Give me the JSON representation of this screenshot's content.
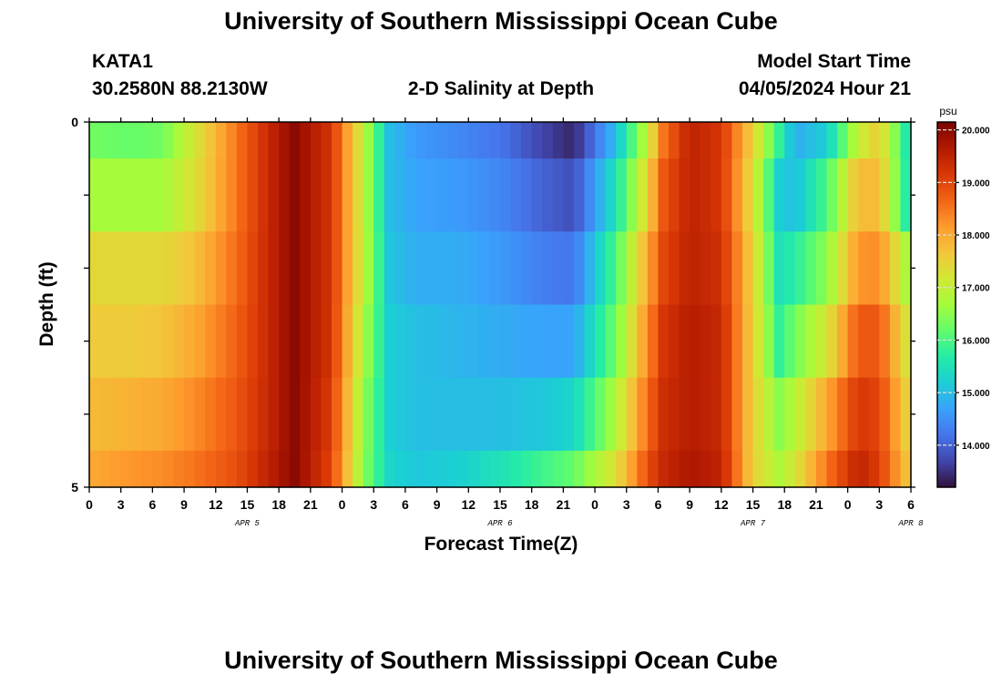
{
  "page": {
    "title": "University of Southern Mississippi Ocean Cube",
    "bottom_title": "University of Southern Mississippi Ocean Cube",
    "station_id": "KATA1",
    "coordinates": "30.2580N  88.2130W",
    "subtitle": "2-D Salinity at Depth",
    "model_start_label": "Model Start Time",
    "model_start_value": "04/05/2024 Hour 21"
  },
  "chart_data": {
    "type": "heatmap",
    "title": "2-D Salinity at Depth",
    "xlabel": "Forecast Time(Z)",
    "ylabel": "Depth (ft)",
    "ylim": [
      0,
      5
    ],
    "y_tick_labels": [
      "0",
      "5"
    ],
    "x_tick_labels": [
      "0",
      "3",
      "6",
      "9",
      "12",
      "15",
      "18",
      "21",
      "0",
      "3",
      "6",
      "9",
      "12",
      "15",
      "18",
      "21",
      "0",
      "3",
      "6",
      "9",
      "12",
      "15",
      "18",
      "21",
      "0",
      "3",
      "6"
    ],
    "day_labels": [
      {
        "label": "APR 5",
        "hour": 15
      },
      {
        "label": "APR 6",
        "hour": 39
      },
      {
        "label": "APR 7",
        "hour": 63
      },
      {
        "label": "APR 8",
        "hour": 78
      }
    ],
    "time_range_hours": [
      0,
      78
    ],
    "depth_bands_ft": [
      [
        0,
        0.5
      ],
      [
        0.5,
        1.5
      ],
      [
        1.5,
        2.5
      ],
      [
        2.5,
        3.5
      ],
      [
        3.5,
        4.5
      ],
      [
        4.5,
        5
      ]
    ],
    "colorbar": {
      "unit": "psu",
      "min": 13.2,
      "max": 20.15,
      "tick_values": [
        14.0,
        15.0,
        16.0,
        17.0,
        18.0,
        19.0,
        20.0
      ],
      "tick_labels": [
        "14.000",
        "15.000",
        "16.000",
        "17.000",
        "18.000",
        "19.000",
        "20.000"
      ],
      "colors": [
        "#30123b",
        "#4145ab",
        "#4675ed",
        "#39a2fc",
        "#1bcfd4",
        "#24eca6",
        "#61fc6c",
        "#a4fc3b",
        "#d1e834",
        "#f3c63a",
        "#fe9b2d",
        "#f36315",
        "#d93806",
        "#b11901",
        "#7a0402"
      ]
    },
    "keyframe_hours": [
      0,
      4,
      7,
      10,
      14,
      17,
      19.5,
      23,
      26,
      28.5,
      31,
      35,
      39,
      43,
      46,
      50,
      53,
      54.5,
      57,
      60,
      63,
      65.5,
      67,
      70,
      73,
      75,
      78
    ],
    "band_series": [
      {
        "band": "0 ft",
        "values": [
          16.3,
          16.2,
          16.3,
          17.2,
          18.5,
          19.4,
          20.0,
          19.2,
          17.0,
          15.0,
          14.6,
          14.4,
          14.2,
          13.7,
          13.4,
          15.0,
          17.0,
          18.5,
          19.5,
          19.2,
          17.5,
          15.8,
          14.8,
          15.2,
          17.0,
          17.6,
          15.3
        ]
      },
      {
        "band": "1 ft",
        "values": [
          16.7,
          16.7,
          16.7,
          17.3,
          18.5,
          19.4,
          20.0,
          19.2,
          17.0,
          15.0,
          14.7,
          14.6,
          14.4,
          14.0,
          13.8,
          15.5,
          17.5,
          18.8,
          19.5,
          19.2,
          17.3,
          15.2,
          15.0,
          16.0,
          17.8,
          17.8,
          15.3
        ]
      },
      {
        "band": "2 ft",
        "values": [
          17.4,
          17.4,
          17.4,
          17.7,
          18.6,
          19.4,
          20.0,
          19.2,
          17.0,
          15.1,
          14.8,
          14.8,
          14.6,
          14.3,
          14.2,
          16.0,
          18.0,
          19.0,
          19.5,
          19.3,
          17.5,
          15.5,
          15.7,
          16.5,
          18.2,
          18.3,
          16.5
        ]
      },
      {
        "band": "3 ft",
        "values": [
          17.6,
          17.6,
          17.7,
          18.0,
          18.7,
          19.4,
          20.0,
          19.2,
          16.8,
          15.2,
          15.0,
          14.9,
          14.8,
          14.7,
          14.7,
          16.3,
          18.3,
          19.2,
          19.6,
          19.4,
          17.5,
          15.8,
          16.3,
          17.2,
          18.8,
          18.8,
          17.0
        ]
      },
      {
        "band": "4 ft",
        "values": [
          17.8,
          17.9,
          18.0,
          18.3,
          18.8,
          19.4,
          20.0,
          19.1,
          16.6,
          15.2,
          15.0,
          15.0,
          15.0,
          15.1,
          15.3,
          16.8,
          18.6,
          19.3,
          19.6,
          19.4,
          17.5,
          16.5,
          16.9,
          18.0,
          19.2,
          19.0,
          17.3
        ]
      },
      {
        "band": "5 ft",
        "values": [
          18.0,
          18.2,
          18.3,
          18.5,
          18.9,
          19.5,
          20.0,
          19.0,
          16.5,
          15.3,
          15.1,
          15.2,
          15.5,
          15.9,
          16.2,
          17.3,
          18.9,
          19.4,
          19.7,
          19.5,
          17.5,
          16.8,
          17.2,
          18.5,
          19.5,
          19.1,
          17.5
        ]
      }
    ]
  }
}
